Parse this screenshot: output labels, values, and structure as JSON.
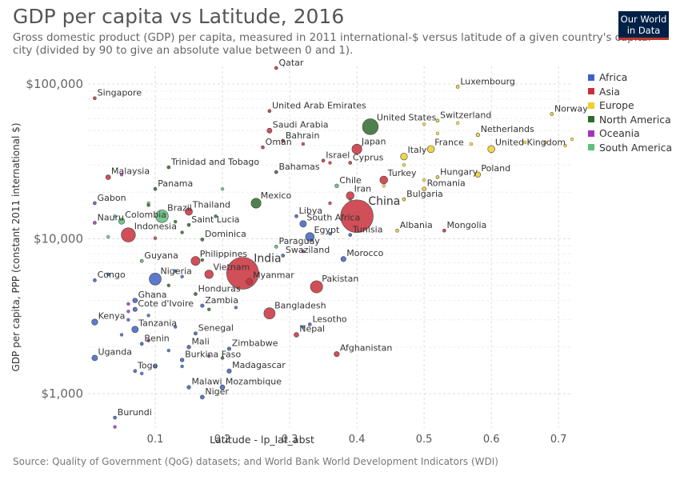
{
  "header": {
    "title": "GDP per capita vs Latitude, 2016",
    "subtitle": "Gross domestic product (GDP) per capita, measured in 2011 international-$ versus latitude of a given country's capital city (divided by 90 to give an absolute value between 0 and 1).",
    "logo_line1": "Our World",
    "logo_line2": "in Data"
  },
  "footer": {
    "source": "Source: Quality of Government (QoG) datasets; and World Bank World Development Indicators (WDI)"
  },
  "legend": [
    {
      "name": "Africa",
      "color": "#3f63c3"
    },
    {
      "name": "Asia",
      "color": "#c9303b"
    },
    {
      "name": "Europe",
      "color": "#f0cf2a"
    },
    {
      "name": "North America",
      "color": "#2f6b2f"
    },
    {
      "name": "Oceania",
      "color": "#a135ba"
    },
    {
      "name": "South America",
      "color": "#5fc07a"
    }
  ],
  "chart_data": {
    "type": "scatter",
    "title": "GDP per capita vs Latitude, 2016",
    "xlabel": "Latitude - lp_lat_abst",
    "ylabel": "GDP per capita, PPP (constant 2011 international $)",
    "xlim": [
      0,
      0.72
    ],
    "ylim": [
      600,
      130000
    ],
    "yscale": "log",
    "x_ticks": [
      "0.1",
      "0.2",
      "0.3",
      "0.4",
      "0.5",
      "0.6",
      "0.7"
    ],
    "x_tick_values": [
      0.1,
      0.2,
      0.3,
      0.4,
      0.5,
      0.6,
      0.7
    ],
    "y_ticks": [
      "$1,000",
      "$10,000",
      "$100,000"
    ],
    "y_tick_values": [
      1000,
      10000,
      100000
    ],
    "grid": true,
    "legend_position": "right",
    "points": [
      {
        "label": "Qatar",
        "x": 0.28,
        "y": 127000,
        "region": "Asia",
        "pop": 2.5
      },
      {
        "label": "Singapore",
        "x": 0.01,
        "y": 81000,
        "region": "Asia",
        "pop": 5.6
      },
      {
        "label": "Luxembourg",
        "x": 0.55,
        "y": 96000,
        "region": "Europe",
        "pop": 0.6
      },
      {
        "label": "Norway",
        "x": 0.69,
        "y": 64000,
        "region": "Europe",
        "pop": 5.2
      },
      {
        "label": "United Arab Emirates",
        "x": 0.27,
        "y": 67000,
        "region": "Asia",
        "pop": 9.3
      },
      {
        "label": "Switzerland",
        "x": 0.52,
        "y": 58000,
        "region": "Europe",
        "pop": 8.4
      },
      {
        "label": "United States",
        "x": 0.42,
        "y": 53000,
        "region": "North America",
        "pop": 323
      },
      {
        "label": "Saudi Arabia",
        "x": 0.27,
        "y": 50000,
        "region": "Asia",
        "pop": 32
      },
      {
        "label": "Netherlands",
        "x": 0.58,
        "y": 47000,
        "region": "Europe",
        "pop": 17
      },
      {
        "label": "Bahrain",
        "x": 0.29,
        "y": 43000,
        "region": "Asia",
        "pop": 1.4
      },
      {
        "label": "Oman",
        "x": 0.26,
        "y": 39000,
        "region": "Asia",
        "pop": 4.4
      },
      {
        "label": "Japan",
        "x": 0.4,
        "y": 38000,
        "region": "Asia",
        "pop": 127
      },
      {
        "label": "United Kingdom",
        "x": 0.6,
        "y": 38000,
        "region": "Europe",
        "pop": 66
      },
      {
        "label": "France",
        "x": 0.51,
        "y": 38000,
        "region": "Europe",
        "pop": 67
      },
      {
        "label": "Italy",
        "x": 0.47,
        "y": 34000,
        "region": "Europe",
        "pop": 61
      },
      {
        "label": "Israel",
        "x": 0.35,
        "y": 32000,
        "region": "Asia",
        "pop": 8.5
      },
      {
        "label": "Cyprus",
        "x": 0.39,
        "y": 31000,
        "region": "Asia",
        "pop": 1.2
      },
      {
        "label": "Trinidad and Tobago",
        "x": 0.12,
        "y": 29000,
        "region": "North America",
        "pop": 1.4
      },
      {
        "label": "Bahamas",
        "x": 0.28,
        "y": 27000,
        "region": "North America",
        "pop": 0.4
      },
      {
        "label": "Poland",
        "x": 0.58,
        "y": 26000,
        "region": "Europe",
        "pop": 38
      },
      {
        "label": "Malaysia",
        "x": 0.03,
        "y": 25000,
        "region": "Asia",
        "pop": 31
      },
      {
        "label": "Hungary",
        "x": 0.52,
        "y": 25000,
        "region": "Europe",
        "pop": 9.8
      },
      {
        "label": "Turkey",
        "x": 0.44,
        "y": 24000,
        "region": "Asia",
        "pop": 80
      },
      {
        "label": "Chile",
        "x": 0.37,
        "y": 22000,
        "region": "South America",
        "pop": 18
      },
      {
        "label": "Romania",
        "x": 0.5,
        "y": 21000,
        "region": "Europe",
        "pop": 20
      },
      {
        "label": "Panama",
        "x": 0.1,
        "y": 21000,
        "region": "North America",
        "pop": 4
      },
      {
        "label": "Iran",
        "x": 0.39,
        "y": 19000,
        "region": "Asia",
        "pop": 80
      },
      {
        "label": "Mexico",
        "x": 0.25,
        "y": 17000,
        "region": "North America",
        "pop": 128
      },
      {
        "label": "Bulgaria",
        "x": 0.47,
        "y": 18000,
        "region": "Europe",
        "pop": 7.1
      },
      {
        "label": "Gabon",
        "x": 0.01,
        "y": 17000,
        "region": "Africa",
        "pop": 2
      },
      {
        "label": "Thailand",
        "x": 0.15,
        "y": 15000,
        "region": "Asia",
        "pop": 69
      },
      {
        "label": "Brazil",
        "x": 0.11,
        "y": 14000,
        "region": "South America",
        "pop": 206
      },
      {
        "label": "China",
        "x": 0.4,
        "y": 14000,
        "region": "Asia",
        "pop": 1380
      },
      {
        "label": "Libya",
        "x": 0.31,
        "y": 14000,
        "region": "Africa",
        "pop": 6.3
      },
      {
        "label": "Colombia",
        "x": 0.05,
        "y": 13000,
        "region": "South America",
        "pop": 48
      },
      {
        "label": "Nauru",
        "x": 0.01,
        "y": 12700,
        "region": "Oceania",
        "pop": 0.01
      },
      {
        "label": "South Africa",
        "x": 0.32,
        "y": 12500,
        "region": "Africa",
        "pop": 56
      },
      {
        "label": "Saint Lucia",
        "x": 0.15,
        "y": 12300,
        "region": "North America",
        "pop": 0.18
      },
      {
        "label": "Albania",
        "x": 0.46,
        "y": 11300,
        "region": "Europe",
        "pop": 2.9
      },
      {
        "label": "Mongolia",
        "x": 0.53,
        "y": 11300,
        "region": "Asia",
        "pop": 3
      },
      {
        "label": "Indonesia",
        "x": 0.06,
        "y": 10600,
        "region": "Asia",
        "pop": 261
      },
      {
        "label": "Tunisia",
        "x": 0.39,
        "y": 10600,
        "region": "Africa",
        "pop": 11
      },
      {
        "label": "Egypt",
        "x": 0.33,
        "y": 10300,
        "region": "Africa",
        "pop": 96
      },
      {
        "label": "Dominica",
        "x": 0.17,
        "y": 9900,
        "region": "North America",
        "pop": 0.07
      },
      {
        "label": "Paraguay",
        "x": 0.28,
        "y": 8900,
        "region": "South America",
        "pop": 6.7
      },
      {
        "label": "Swaziland",
        "x": 0.29,
        "y": 7800,
        "region": "Africa",
        "pop": 1.3
      },
      {
        "label": "Morocco",
        "x": 0.38,
        "y": 7400,
        "region": "Africa",
        "pop": 35
      },
      {
        "label": "Guyana",
        "x": 0.08,
        "y": 7200,
        "region": "South America",
        "pop": 0.8
      },
      {
        "label": "Philippines",
        "x": 0.16,
        "y": 7200,
        "region": "Asia",
        "pop": 104
      },
      {
        "label": "India",
        "x": 0.23,
        "y": 6000,
        "region": "Asia",
        "pop": 1320
      },
      {
        "label": "Vietnam",
        "x": 0.18,
        "y": 5900,
        "region": "Asia",
        "pop": 94
      },
      {
        "label": "Nigeria",
        "x": 0.1,
        "y": 5500,
        "region": "Africa",
        "pop": 186
      },
      {
        "label": "Congo",
        "x": 0.01,
        "y": 5400,
        "region": "Africa",
        "pop": 5.1
      },
      {
        "label": "Myanmar",
        "x": 0.24,
        "y": 5300,
        "region": "Asia",
        "pop": 53
      },
      {
        "label": "Pakistan",
        "x": 0.34,
        "y": 4900,
        "region": "Asia",
        "pop": 193
      },
      {
        "label": "Honduras",
        "x": 0.16,
        "y": 4400,
        "region": "North America",
        "pop": 9.1
      },
      {
        "label": "Ghana",
        "x": 0.07,
        "y": 4000,
        "region": "Africa",
        "pop": 28
      },
      {
        "label": "Zambia",
        "x": 0.17,
        "y": 3700,
        "region": "Africa",
        "pop": 16.6
      },
      {
        "label": "Bangladesh",
        "x": 0.27,
        "y": 3300,
        "region": "Asia",
        "pop": 163
      },
      {
        "label": "Cote d'Ivoire",
        "x": 0.07,
        "y": 3500,
        "region": "Africa",
        "pop": 24
      },
      {
        "label": "Kenya",
        "x": 0.01,
        "y": 2900,
        "region": "Africa",
        "pop": 48
      },
      {
        "label": "Lesotho",
        "x": 0.33,
        "y": 2800,
        "region": "Africa",
        "pop": 2.2
      },
      {
        "label": "Tanzania",
        "x": 0.07,
        "y": 2600,
        "region": "Africa",
        "pop": 55
      },
      {
        "label": "Nepal",
        "x": 0.31,
        "y": 2400,
        "region": "Asia",
        "pop": 29
      },
      {
        "label": "Senegal",
        "x": 0.16,
        "y": 2450,
        "region": "Africa",
        "pop": 15
      },
      {
        "label": "Benin",
        "x": 0.08,
        "y": 2100,
        "region": "Africa",
        "pop": 11
      },
      {
        "label": "Mali",
        "x": 0.15,
        "y": 2000,
        "region": "Africa",
        "pop": 18
      },
      {
        "label": "Zimbabwe",
        "x": 0.21,
        "y": 1950,
        "region": "Africa",
        "pop": 16
      },
      {
        "label": "Afghanistan",
        "x": 0.37,
        "y": 1800,
        "region": "Asia",
        "pop": 35
      },
      {
        "label": "Uganda",
        "x": 0.01,
        "y": 1700,
        "region": "Africa",
        "pop": 41
      },
      {
        "label": "Burkina Faso",
        "x": 0.14,
        "y": 1650,
        "region": "Africa",
        "pop": 19
      },
      {
        "label": "Togo",
        "x": 0.07,
        "y": 1400,
        "region": "Africa",
        "pop": 7.6
      },
      {
        "label": "Madagascar",
        "x": 0.21,
        "y": 1400,
        "region": "Africa",
        "pop": 25
      },
      {
        "label": "Malawi",
        "x": 0.15,
        "y": 1100,
        "region": "Africa",
        "pop": 18
      },
      {
        "label": "Mozambique",
        "x": 0.2,
        "y": 1100,
        "region": "Africa",
        "pop": 29
      },
      {
        "label": "Niger",
        "x": 0.17,
        "y": 950,
        "region": "Africa",
        "pop": 21
      },
      {
        "label": "Burundi",
        "x": 0.04,
        "y": 700,
        "region": "Africa",
        "pop": 10.5
      }
    ],
    "unlabeled_points": [
      {
        "x": 0.04,
        "y": 610,
        "region": "Oceania"
      },
      {
        "x": 0.05,
        "y": 26000,
        "region": "Oceania"
      },
      {
        "x": 0.55,
        "y": 56000,
        "region": "Europe"
      },
      {
        "x": 0.52,
        "y": 48000,
        "region": "Europe"
      },
      {
        "x": 0.57,
        "y": 41000,
        "region": "Europe"
      },
      {
        "x": 0.65,
        "y": 42000,
        "region": "Europe"
      },
      {
        "x": 0.68,
        "y": 42000,
        "region": "Europe"
      },
      {
        "x": 0.71,
        "y": 40000,
        "region": "Europe"
      },
      {
        "x": 0.72,
        "y": 44000,
        "region": "Europe"
      },
      {
        "x": 0.5,
        "y": 55000,
        "region": "Europe"
      },
      {
        "x": 0.47,
        "y": 30000,
        "region": "Europe"
      },
      {
        "x": 0.5,
        "y": 24000,
        "region": "Europe"
      },
      {
        "x": 0.44,
        "y": 22000,
        "region": "Europe"
      },
      {
        "x": 0.36,
        "y": 31000,
        "region": "Asia"
      },
      {
        "x": 0.32,
        "y": 41000,
        "region": "Asia"
      },
      {
        "x": 0.36,
        "y": 17000,
        "region": "Asia"
      },
      {
        "x": 0.39,
        "y": 18000,
        "region": "South America"
      },
      {
        "x": 0.2,
        "y": 21000,
        "region": "South America"
      },
      {
        "x": 0.09,
        "y": 17000,
        "region": "South America"
      },
      {
        "x": 0.04,
        "y": 14000,
        "region": "South America"
      },
      {
        "x": 0.03,
        "y": 10300,
        "region": "South America"
      },
      {
        "x": 0.09,
        "y": 16500,
        "region": "North America"
      },
      {
        "x": 0.13,
        "y": 12900,
        "region": "North America"
      },
      {
        "x": 0.19,
        "y": 14000,
        "region": "North America"
      },
      {
        "x": 0.14,
        "y": 11000,
        "region": "North America"
      },
      {
        "x": 0.17,
        "y": 7300,
        "region": "North America"
      },
      {
        "x": 0.12,
        "y": 5000,
        "region": "North America"
      },
      {
        "x": 0.18,
        "y": 3500,
        "region": "North America"
      },
      {
        "x": 0.2,
        "y": 1700,
        "region": "North America"
      },
      {
        "x": 0.06,
        "y": 3400,
        "region": "Oceania"
      },
      {
        "x": 0.06,
        "y": 3800,
        "region": "Oceania"
      },
      {
        "x": 0.09,
        "y": 2200,
        "region": "Oceania"
      },
      {
        "x": 0.18,
        "y": 1750,
        "region": "Oceania"
      },
      {
        "x": 0.32,
        "y": 8300,
        "region": "Oceania"
      },
      {
        "x": 0.1,
        "y": 10100,
        "region": "Asia"
      },
      {
        "x": 0.09,
        "y": 3200,
        "region": "Africa"
      },
      {
        "x": 0.13,
        "y": 2700,
        "region": "Africa"
      },
      {
        "x": 0.12,
        "y": 1900,
        "region": "Africa"
      },
      {
        "x": 0.14,
        "y": 1500,
        "region": "Africa"
      },
      {
        "x": 0.1,
        "y": 1500,
        "region": "Africa"
      },
      {
        "x": 0.08,
        "y": 1350,
        "region": "Africa"
      },
      {
        "x": 0.22,
        "y": 3600,
        "region": "Africa"
      },
      {
        "x": 0.14,
        "y": 5700,
        "region": "Africa"
      },
      {
        "x": 0.32,
        "y": 2700,
        "region": "Africa"
      },
      {
        "x": 0.05,
        "y": 2400,
        "region": "Africa"
      },
      {
        "x": 0.06,
        "y": 3000,
        "region": "Africa"
      },
      {
        "x": 0.13,
        "y": 6200,
        "region": "Africa"
      },
      {
        "x": 0.36,
        "y": 10800,
        "region": "Africa"
      },
      {
        "x": 0.03,
        "y": 5900,
        "region": "Africa"
      }
    ]
  }
}
